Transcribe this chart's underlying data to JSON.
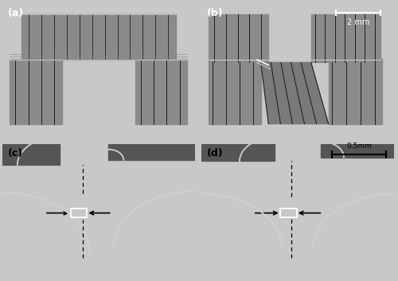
{
  "fig_width": 5.0,
  "fig_height": 3.53,
  "dpi": 100,
  "separator_color": "#c8c8c8",
  "panel_labels": [
    "(a)",
    "(b)",
    "(c)",
    "(d)"
  ],
  "label_color_top": "#ffffff",
  "label_color_bottom": "#000000",
  "label_fontsize": 9,
  "scale_bar_top_text": "2 mm",
  "scale_bar_bottom_text": "0.5mm",
  "top_panel_bg": "#000000",
  "bottom_panel_bg": "#9a9a9a",
  "specimen_gray": "#8a8a8a",
  "groove_dark": "#2a2a2a",
  "groove_light": "#b0b0b0",
  "sem_bg": "#8c8c8c",
  "sem_dark": "#555555",
  "sem_edge": "#d0d0d0"
}
